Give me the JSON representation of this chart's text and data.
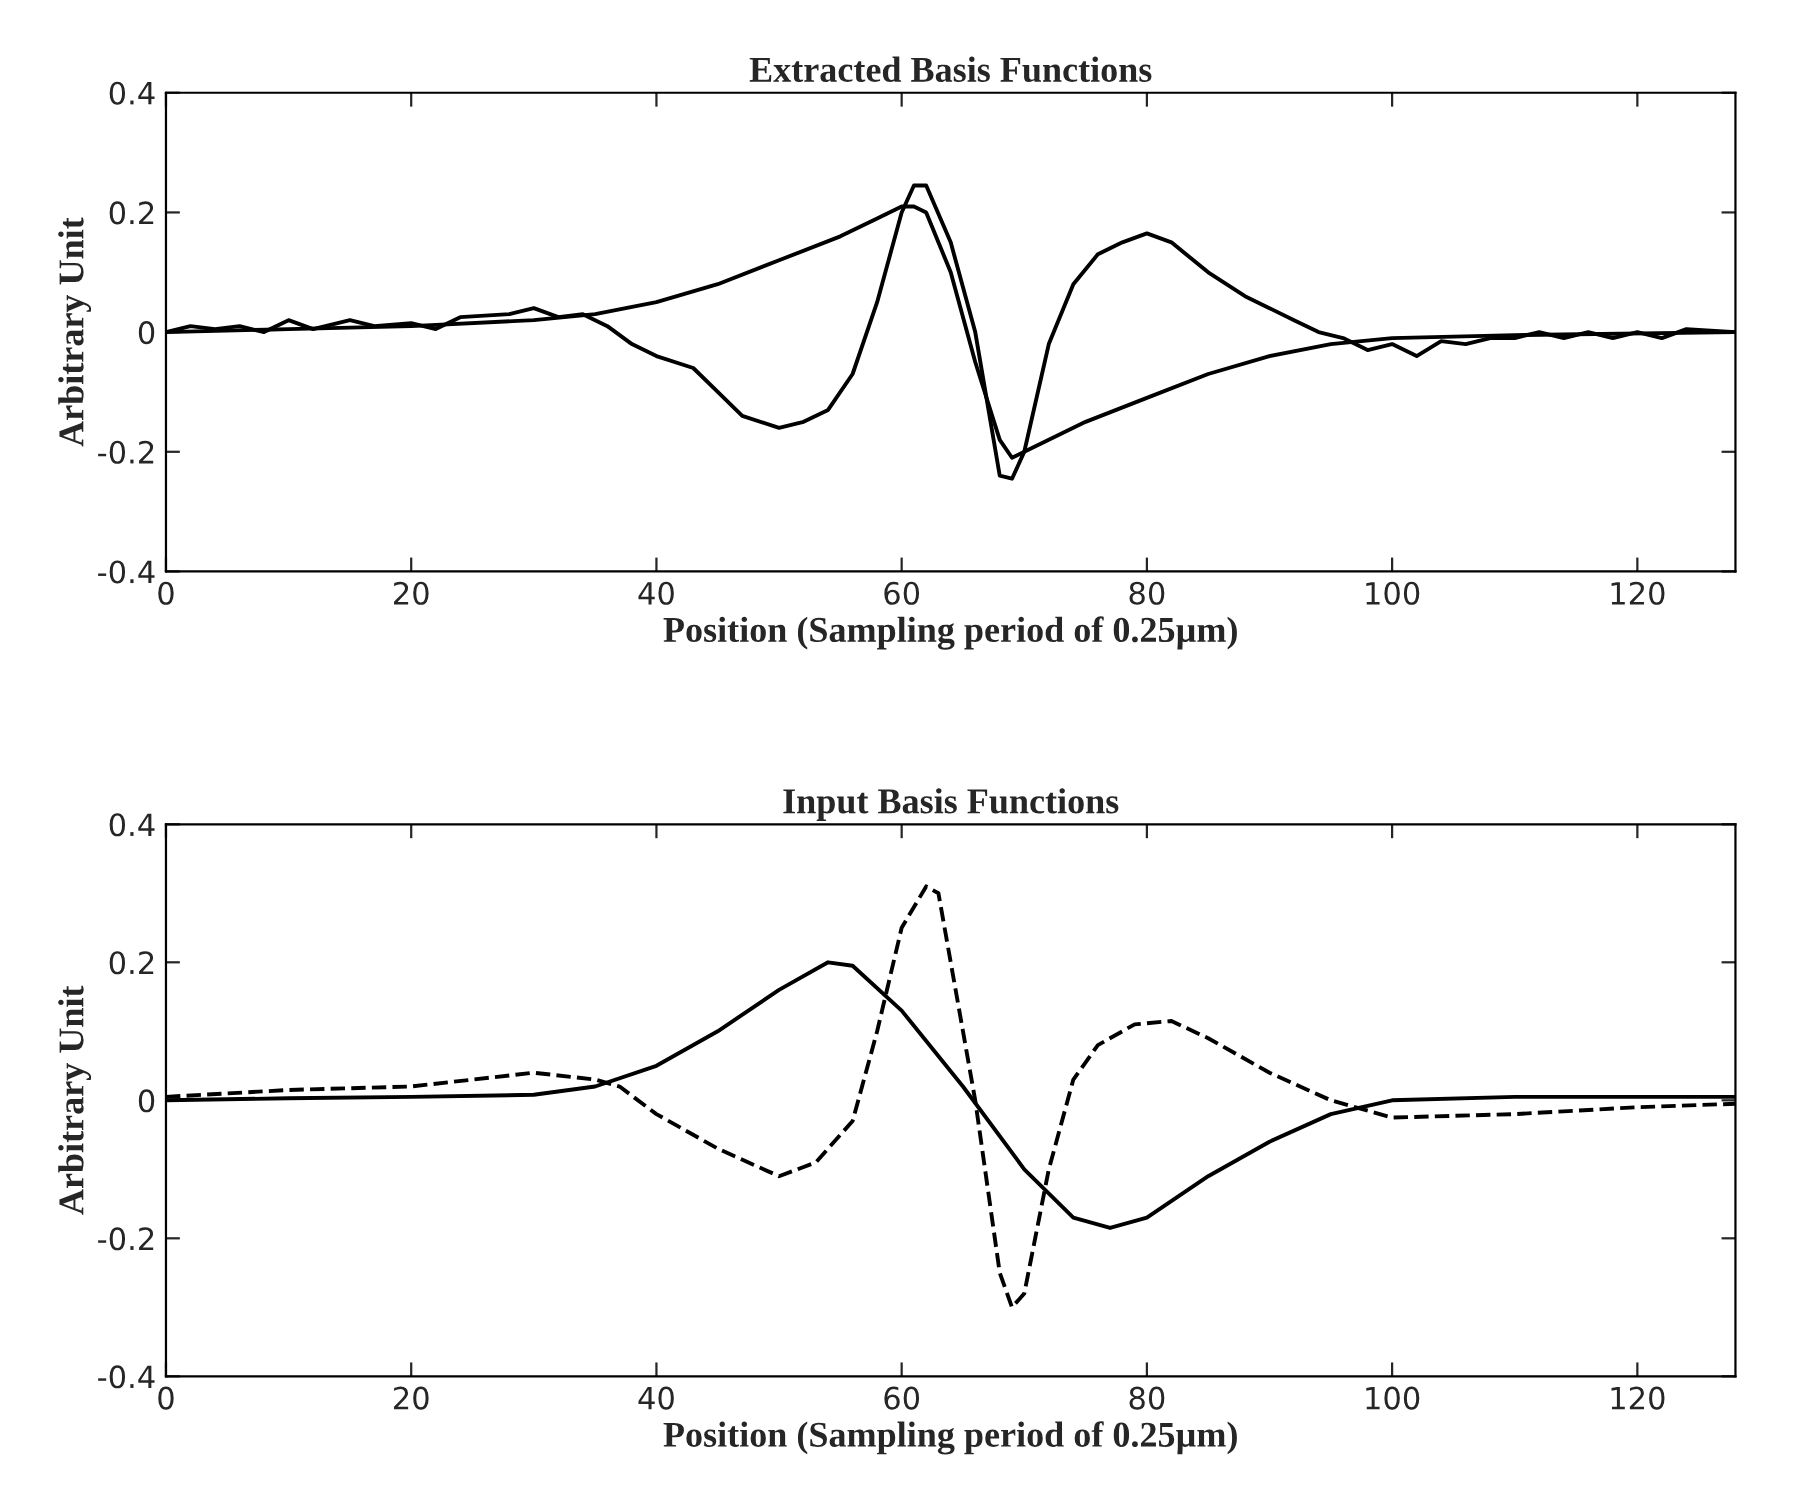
{
  "chart_data": [
    {
      "type": "line",
      "title": "Extracted Basis Functions",
      "xlabel": "Position (Sampling period of 0.25µm)",
      "ylabel": "Arbitrary Unit",
      "xlim": [
        0,
        128
      ],
      "ylim": [
        -0.4,
        0.4
      ],
      "xticks": [
        0,
        20,
        40,
        60,
        80,
        100,
        120
      ],
      "yticks": [
        -0.4,
        -0.2,
        0,
        0.2,
        0.4
      ],
      "grid": false,
      "legend": false,
      "series": [
        {
          "color": "#000000",
          "line_style": "solid",
          "x": [
            0,
            10,
            20,
            30,
            35,
            40,
            45,
            50,
            55,
            58,
            60,
            61,
            62,
            64,
            66,
            68,
            69,
            70,
            75,
            80,
            85,
            90,
            95,
            100,
            110,
            128
          ],
          "values": [
            0,
            0.005,
            0.01,
            0.02,
            0.03,
            0.05,
            0.08,
            0.12,
            0.16,
            0.19,
            0.21,
            0.21,
            0.2,
            0.1,
            -0.05,
            -0.18,
            -0.21,
            -0.2,
            -0.15,
            -0.11,
            -0.07,
            -0.04,
            -0.02,
            -0.01,
            -0.005,
            0
          ]
        },
        {
          "color": "#000000",
          "line_style": "solid",
          "x": [
            0,
            2,
            4,
            6,
            8,
            10,
            12,
            15,
            17,
            20,
            22,
            24,
            28,
            30,
            32,
            34,
            36,
            38,
            40,
            43,
            45,
            47,
            50,
            52,
            54,
            56,
            58,
            60,
            61,
            62,
            64,
            66,
            67,
            68,
            69,
            70,
            72,
            74,
            76,
            78,
            80,
            82,
            85,
            88,
            90,
            92,
            94,
            96,
            98,
            100,
            102,
            104,
            106,
            108,
            110,
            112,
            114,
            116,
            118,
            120,
            122,
            124,
            128
          ],
          "values": [
            0,
            0.01,
            0.005,
            0.01,
            0,
            0.02,
            0.005,
            0.02,
            0.01,
            0.015,
            0.005,
            0.025,
            0.03,
            0.04,
            0.025,
            0.03,
            0.01,
            -0.02,
            -0.04,
            -0.06,
            -0.1,
            -0.14,
            -0.16,
            -0.15,
            -0.13,
            -0.07,
            0.05,
            0.2,
            0.245,
            0.245,
            0.15,
            0,
            -0.12,
            -0.24,
            -0.245,
            -0.2,
            -0.02,
            0.08,
            0.13,
            0.15,
            0.165,
            0.15,
            0.1,
            0.06,
            0.04,
            0.02,
            0,
            -0.01,
            -0.03,
            -0.02,
            -0.04,
            -0.015,
            -0.02,
            -0.01,
            -0.01,
            0,
            -0.01,
            0,
            -0.01,
            0,
            -0.01,
            0.005,
            0
          ]
        }
      ]
    },
    {
      "type": "line",
      "title": "Input Basis Functions",
      "xlabel": "Position (Sampling period of 0.25µm)",
      "ylabel": "Arbitrary Unit",
      "xlim": [
        0,
        128
      ],
      "ylim": [
        -0.4,
        0.4
      ],
      "xticks": [
        0,
        20,
        40,
        60,
        80,
        100,
        120
      ],
      "yticks": [
        -0.4,
        -0.2,
        0,
        0.2,
        0.4
      ],
      "grid": false,
      "legend": false,
      "series": [
        {
          "color": "#000000",
          "line_style": "solid",
          "x": [
            0,
            10,
            20,
            30,
            35,
            40,
            45,
            50,
            54,
            56,
            60,
            65,
            70,
            74,
            77,
            80,
            85,
            90,
            95,
            100,
            110,
            128
          ],
          "values": [
            0,
            0.003,
            0.005,
            0.008,
            0.02,
            0.05,
            0.1,
            0.16,
            0.2,
            0.195,
            0.13,
            0.02,
            -0.1,
            -0.17,
            -0.185,
            -0.17,
            -0.11,
            -0.06,
            -0.02,
            0,
            0.005,
            0.005
          ]
        },
        {
          "color": "#000000",
          "line_style": "dashed",
          "x": [
            0,
            10,
            20,
            30,
            35,
            37,
            40,
            45,
            50,
            53,
            56,
            58,
            60,
            62,
            63,
            64,
            66,
            68,
            69,
            70,
            72,
            74,
            76,
            79,
            82,
            85,
            90,
            95,
            100,
            110,
            120,
            128
          ],
          "values": [
            0.005,
            0.015,
            0.02,
            0.04,
            0.03,
            0.02,
            -0.02,
            -0.07,
            -0.11,
            -0.09,
            -0.03,
            0.1,
            0.25,
            0.31,
            0.3,
            0.2,
            0,
            -0.25,
            -0.3,
            -0.28,
            -0.1,
            0.03,
            0.08,
            0.11,
            0.115,
            0.09,
            0.04,
            0,
            -0.025,
            -0.02,
            -0.01,
            -0.005
          ]
        }
      ]
    }
  ]
}
